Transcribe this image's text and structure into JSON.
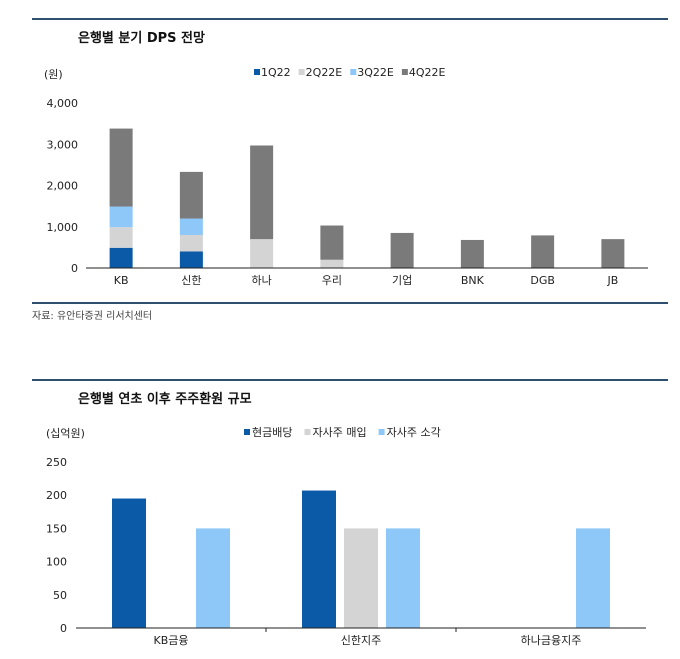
{
  "colors": {
    "navy": "#0a5aa8",
    "light_gray": "#d4d4d4",
    "light_blue": "#8ec8f8",
    "dark_gray": "#7a7a7a"
  },
  "chart_data": [
    {
      "type": "bar",
      "stacked": true,
      "title": "은행별 분기 DPS 전망",
      "ylabel": "(원)",
      "ylim": [
        0,
        4000
      ],
      "yticks": [
        "0",
        "1,000",
        "2,000",
        "3,000",
        "4,000"
      ],
      "ytick_values": [
        0,
        1000,
        2000,
        3000,
        4000
      ],
      "categories": [
        "KB",
        "신한",
        "하나",
        "우리",
        "기업",
        "BNK",
        "DGB",
        "JB"
      ],
      "legend_position": "top",
      "series": [
        {
          "name": "1Q22",
          "color": "#0a5aa8",
          "values": [
            490,
            400,
            0,
            0,
            0,
            0,
            0,
            0
          ]
        },
        {
          "name": "2Q22E",
          "color": "#d4d4d4",
          "values": [
            500,
            400,
            700,
            200,
            0,
            0,
            0,
            0
          ]
        },
        {
          "name": "3Q22E",
          "color": "#8ec8f8",
          "values": [
            500,
            400,
            0,
            0,
            0,
            0,
            0,
            0
          ]
        },
        {
          "name": "4Q22E",
          "color": "#7a7a7a",
          "values": [
            1890,
            1130,
            2270,
            830,
            850,
            680,
            790,
            700
          ]
        }
      ],
      "source": "자료: 유안타증권 리서치센터"
    },
    {
      "type": "bar",
      "stacked": false,
      "title": "은행별 연초 이후 주주환원 규모",
      "ylabel": "(십억원)",
      "ylim": [
        0,
        250
      ],
      "yticks": [
        "0",
        "50",
        "100",
        "150",
        "200",
        "250"
      ],
      "ytick_values": [
        0,
        50,
        100,
        150,
        200,
        250
      ],
      "categories": [
        "KB금융",
        "신한지주",
        "하나금융지주"
      ],
      "legend_position": "top",
      "series": [
        {
          "name": "현금배당",
          "color": "#0a5aa8",
          "values": [
            195,
            207,
            0
          ]
        },
        {
          "name": "자사주 매입",
          "color": "#d4d4d4",
          "values": [
            0,
            150,
            0
          ]
        },
        {
          "name": "자사주 소각",
          "color": "#8ec8f8",
          "values": [
            150,
            150,
            150
          ]
        }
      ]
    }
  ]
}
